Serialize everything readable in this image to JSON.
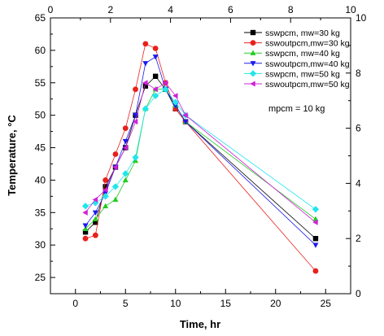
{
  "chart_data": {
    "type": "line",
    "xlabel": "Time, hr",
    "ylabel": "Temperature, °C",
    "xlim": [
      -2.5,
      27.5
    ],
    "ylim": [
      22.5,
      65
    ],
    "x_ticks": [
      0,
      5,
      10,
      15,
      20,
      25
    ],
    "y_ticks": [
      25,
      30,
      35,
      40,
      45,
      50,
      55,
      60,
      65
    ],
    "top_axis": {
      "ticks": [
        0,
        2,
        4,
        6,
        8,
        10
      ],
      "range": [
        0,
        10
      ]
    },
    "right_axis": {
      "ticks": [
        0,
        2,
        4,
        6,
        8,
        10
      ],
      "range": [
        0,
        10
      ]
    },
    "grid": false,
    "legend_position": "top-right",
    "annotation": "mpcm = 10 kg",
    "series": [
      {
        "name": "sswpcm, mw=30 kg",
        "color": "#000000",
        "marker": "square",
        "x": [
          1,
          2,
          3,
          4,
          5,
          6,
          7,
          8,
          9,
          10,
          11,
          24
        ],
        "y": [
          32,
          33.5,
          39,
          42,
          45,
          50,
          54.5,
          56,
          54,
          51,
          49,
          31
        ]
      },
      {
        "name": "sswoutpcm,mw=30 kg",
        "color": "#e8201c",
        "marker": "circle",
        "x": [
          1,
          2,
          3,
          4,
          5,
          6,
          7,
          8,
          9,
          10,
          11,
          24
        ],
        "y": [
          31,
          31.5,
          40,
          44,
          48,
          54,
          61,
          60.3,
          55,
          51,
          49,
          26
        ]
      },
      {
        "name": "sswpcm, mw=40 kg",
        "color": "#22cc22",
        "marker": "triangle-up",
        "x": [
          1,
          2,
          3,
          4,
          5,
          6,
          7,
          8,
          9,
          10,
          11,
          24
        ],
        "y": [
          32.5,
          34,
          36,
          37,
          40,
          43,
          51,
          54,
          54,
          51.5,
          49,
          34
        ]
      },
      {
        "name": "sswoutpcm,mw=40 kg",
        "color": "#1a1aee",
        "marker": "triangle-down",
        "x": [
          1,
          2,
          3,
          4,
          5,
          6,
          7,
          8,
          9,
          10,
          11,
          24
        ],
        "y": [
          33,
          35,
          38,
          42,
          46,
          50,
          58,
          59,
          54,
          51.5,
          49,
          30
        ]
      },
      {
        "name": "sswpcm, mw=50 kg",
        "color": "#22e5ee",
        "marker": "diamond",
        "x": [
          1,
          2,
          3,
          4,
          5,
          6,
          7,
          8,
          9,
          10,
          11,
          24
        ],
        "y": [
          36,
          36.5,
          37.5,
          39,
          41,
          43.5,
          51,
          53,
          54,
          52,
          50,
          35.5
        ]
      },
      {
        "name": "sswoutpcm,mw=50 kg",
        "color": "#d020d8",
        "marker": "triangle-left",
        "x": [
          1,
          2,
          3,
          4,
          5,
          6,
          7,
          8,
          9,
          10,
          11,
          24
        ],
        "y": [
          35,
          37,
          38.5,
          42,
          45,
          49,
          55,
          54,
          55,
          53,
          50,
          33.5
        ]
      }
    ]
  }
}
